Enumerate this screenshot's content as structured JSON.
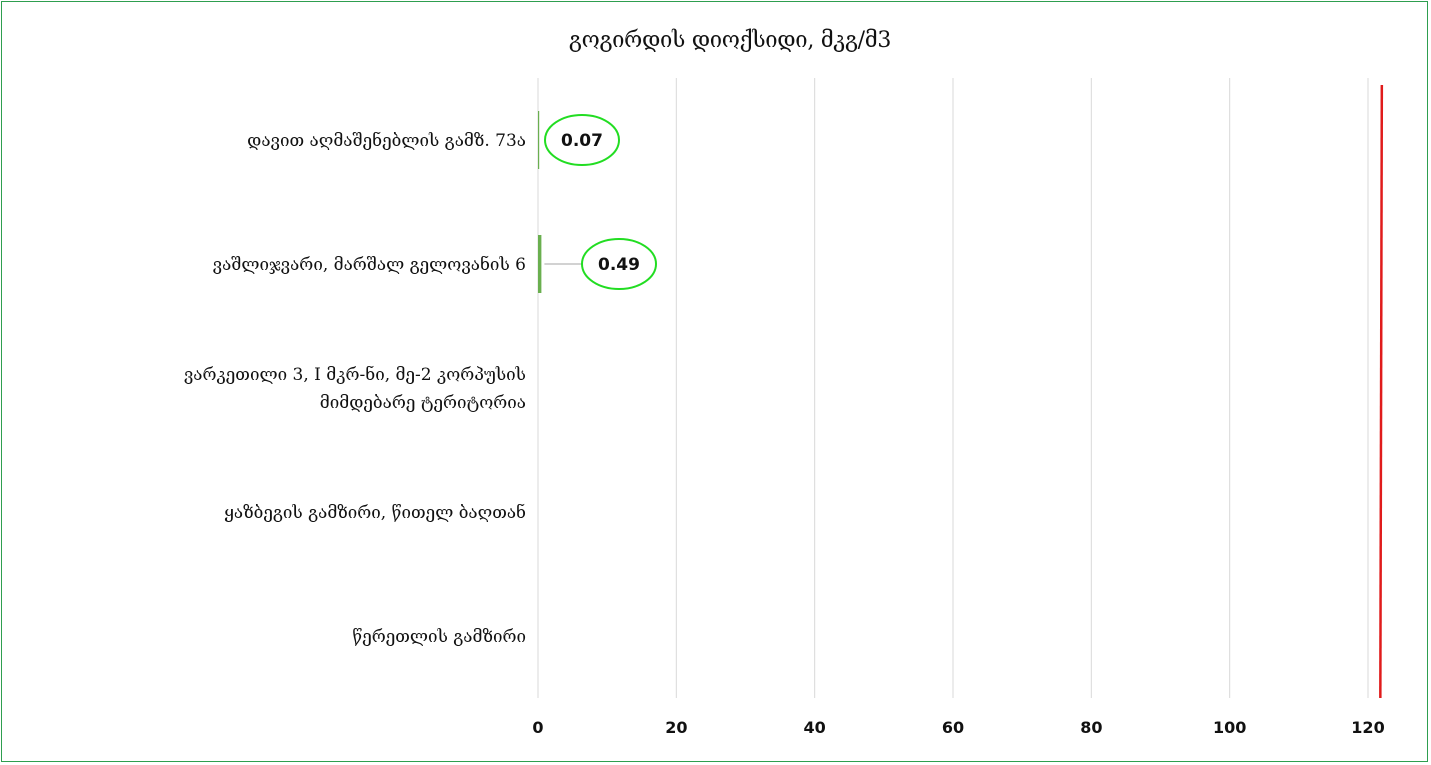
{
  "chart_data": {
    "type": "bar",
    "orientation": "horizontal",
    "title": "გოგირდის დიოქსიდი, მკგ/მ3",
    "categories": [
      "დავით აღმაშენებლის გამზ. 73ა",
      "ვაშლიჯვარი, მარშალ გელოვანის 6",
      "ვარკეთილი 3, I მკრ-ნი, მე-2 კორპუსის მიმდებარე ტერიტორია",
      "ყაზბეგის გამზირი, წითელ ბაღთან",
      "წერეთლის გამზირი"
    ],
    "category_lines": [
      [
        "დავით აღმაშენებლის გამზ. 73ა"
      ],
      [
        "ვაშლიჯვარი, მარშალ გელოვანის 6"
      ],
      [
        "ვარკეთილი 3, I მკრ-ნი, მე-2 კორპუსის",
        "მიმდებარე ტერიტორია"
      ],
      [
        "ყაზბეგის გამზირი, წითელ ბაღთან"
      ],
      [
        "წერეთლის გამზირი"
      ]
    ],
    "values": [
      0.07,
      0.49,
      null,
      null,
      null
    ],
    "data_labels": [
      "0.07",
      "0.49",
      "",
      "",
      ""
    ],
    "xlim": [
      0,
      120
    ],
    "ticks": [
      0,
      20,
      40,
      60,
      80,
      100,
      120
    ],
    "tick_labels": [
      "0",
      "20",
      "40",
      "60",
      "80",
      "100",
      "120"
    ],
    "reference_line": {
      "value": 122,
      "color": "#e01b1b"
    },
    "grid": true,
    "legend": "none",
    "colors": {
      "bar": "#6aaf4f",
      "label_ellipse": "#22dd22",
      "grid": "#d9d9d9",
      "frame": "#2e9e4f"
    }
  }
}
